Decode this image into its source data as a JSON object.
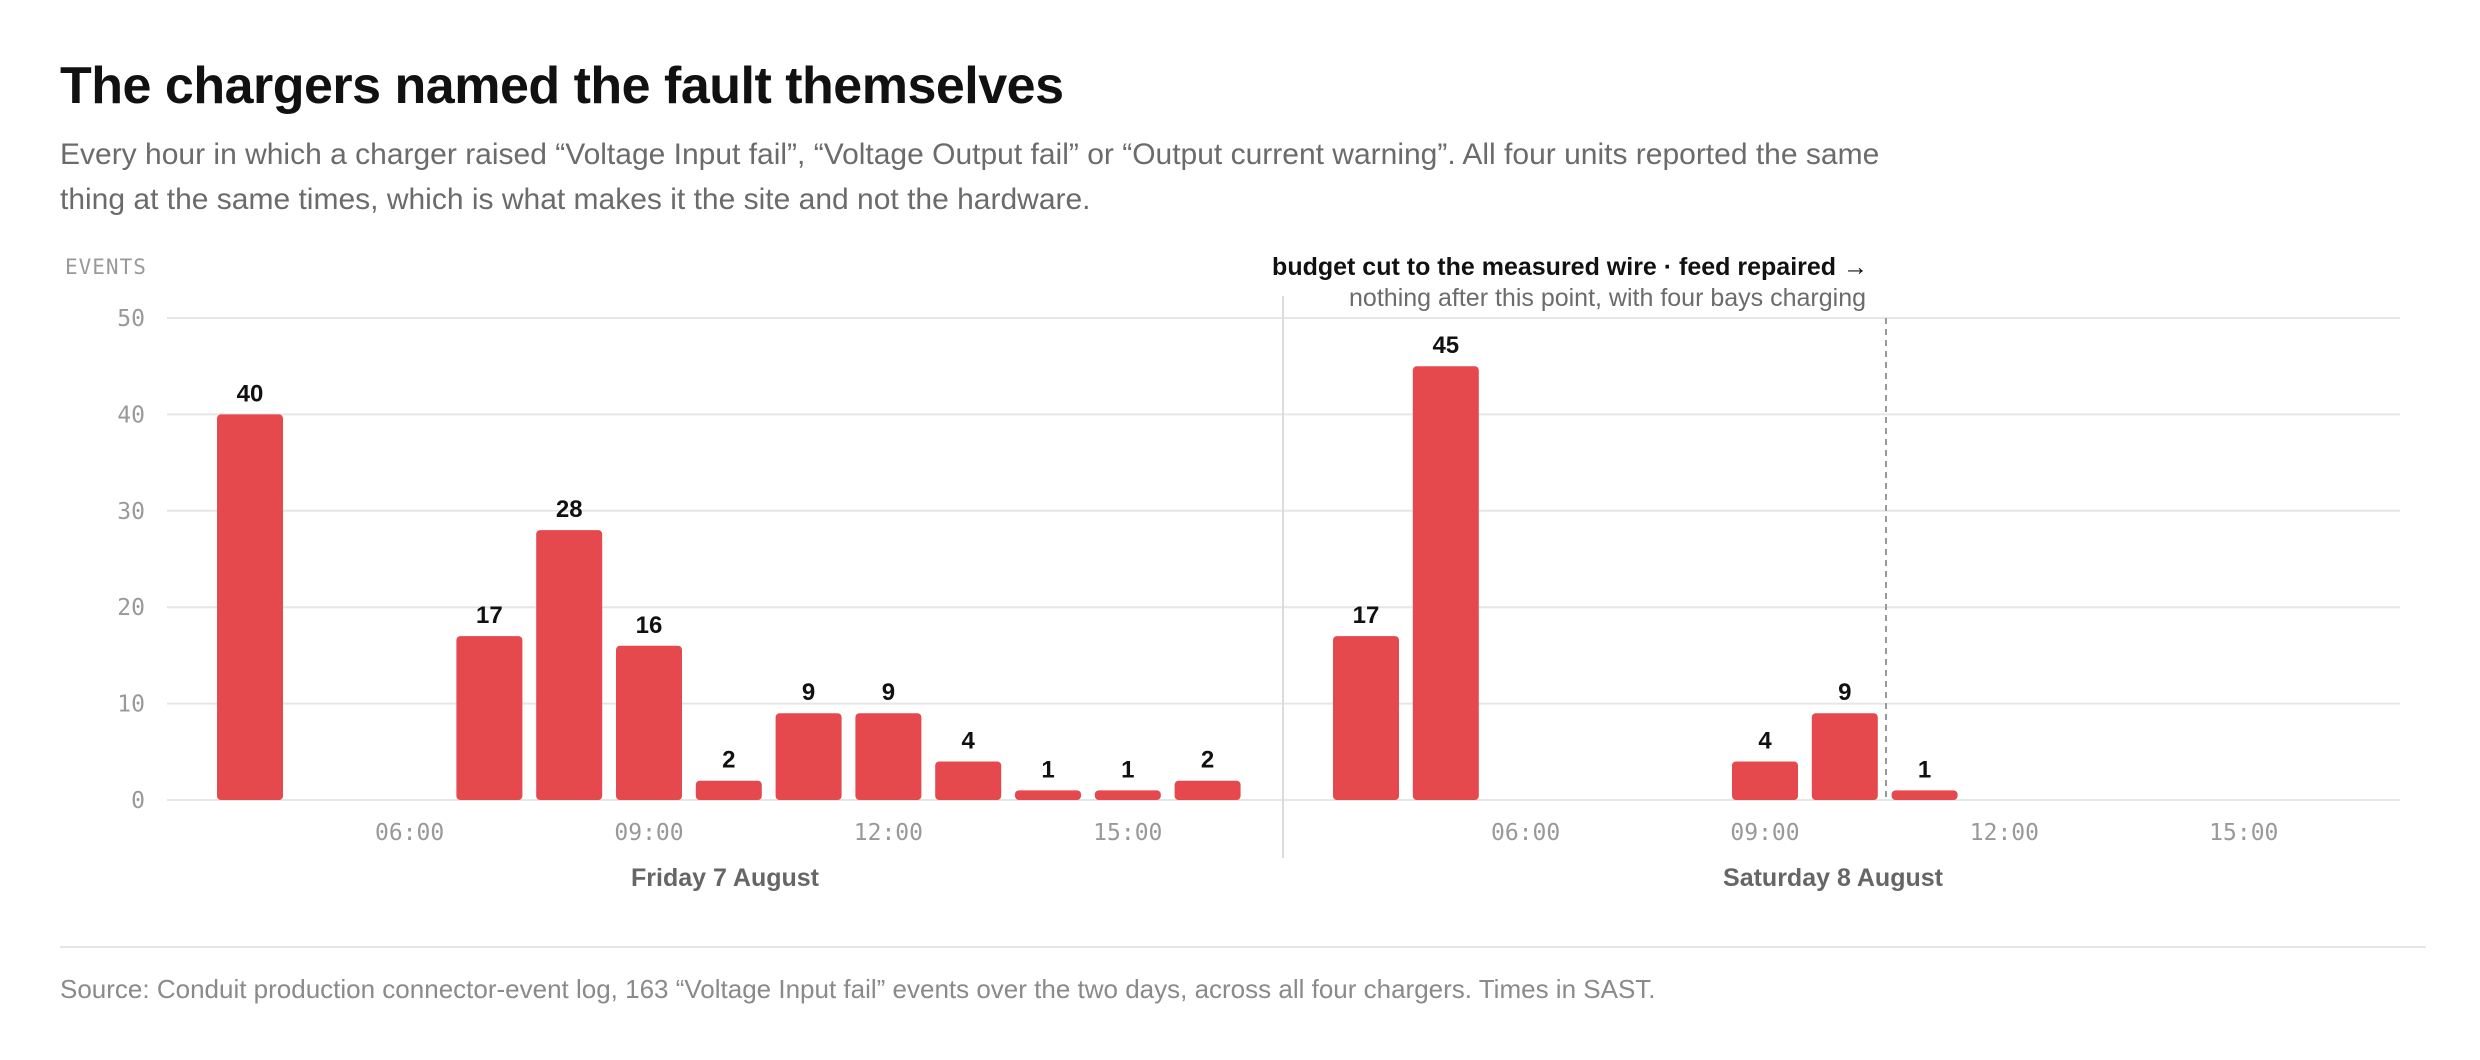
{
  "header": {
    "title": "The chargers named the fault themselves",
    "subtitle": "Every hour in which a charger raised “Voltage Input fail”, “Voltage Output fail” or “Output current warning”. All four units reported the same thing at the same times, which is what makes it the site and not the hardware."
  },
  "footer": {
    "source": "Source: Conduit production connector-event log, 163 “Voltage Input fail” events over the two days, across all four chargers. Times in SAST."
  },
  "colors": {
    "bar": "#e5484d",
    "grid": "#e6e6e6",
    "axis_text": "#999999",
    "label": "#111111"
  },
  "chart_data": {
    "type": "bar",
    "ylabel": "EVENTS",
    "ylim": [
      0,
      50
    ],
    "yticks": [
      0,
      10,
      20,
      30,
      40,
      50
    ],
    "grid": true,
    "hours_per_day": 14,
    "day_start_hour": 4,
    "days": [
      {
        "label": "Friday 7 August",
        "ticks": [
          "06:00",
          "09:00",
          "12:00",
          "15:00"
        ],
        "values": [
          40,
          0,
          0,
          17,
          28,
          16,
          2,
          9,
          9,
          4,
          1,
          1,
          2,
          null
        ]
      },
      {
        "label": "Saturday 8 August",
        "ticks": [
          "06:00",
          "09:00",
          "12:00",
          "15:00"
        ],
        "values": [
          17,
          45,
          0,
          0,
          0,
          4,
          9,
          1,
          0,
          0,
          0,
          0,
          0,
          0
        ]
      }
    ],
    "annotation": {
      "title": "budget cut to the measured wire · feed repaired →",
      "note": "nothing after this point, with four bays charging",
      "at": "Saturday 8 August 11:00"
    }
  }
}
